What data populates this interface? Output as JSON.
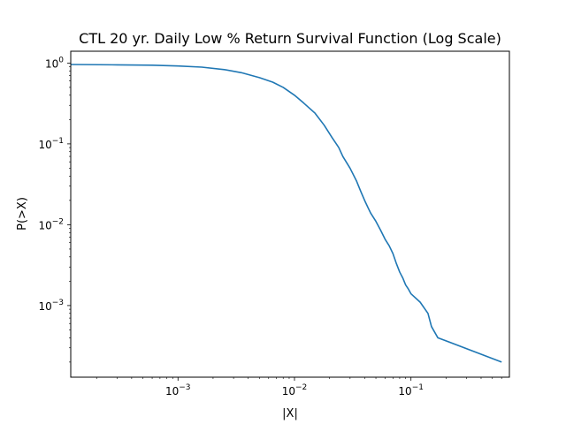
{
  "chart_data": {
    "type": "line",
    "title": "CTL 20 yr. Daily Low % Return Survival Function (Log Scale)",
    "xlabel": "|X|",
    "ylabel": "P(>X)",
    "xscale": "log",
    "yscale": "log",
    "xlim": [
      0.00012,
      0.7
    ],
    "ylim": [
      0.00013,
      1.4
    ],
    "grid": false,
    "legend": "none",
    "x_ticks": [
      {
        "base": "10",
        "exp": "−3",
        "value": 0.001
      },
      {
        "base": "10",
        "exp": "−2",
        "value": 0.01
      },
      {
        "base": "10",
        "exp": "−1",
        "value": 0.1
      }
    ],
    "y_ticks": [
      {
        "base": "10",
        "exp": "0",
        "value": 1
      },
      {
        "base": "10",
        "exp": "−1",
        "value": 0.1
      },
      {
        "base": "10",
        "exp": "−2",
        "value": 0.01
      },
      {
        "base": "10",
        "exp": "−3",
        "value": 0.001
      }
    ],
    "series": [
      {
        "color": "#1f77b4",
        "x": [
          0.00012,
          0.0003,
          0.0006,
          0.001,
          0.0016,
          0.0025,
          0.0035,
          0.005,
          0.0065,
          0.008,
          0.01,
          0.012,
          0.015,
          0.018,
          0.021,
          0.024,
          0.026,
          0.03,
          0.034,
          0.037,
          0.04,
          0.043,
          0.045,
          0.05,
          0.055,
          0.06,
          0.065,
          0.07,
          0.075,
          0.08,
          0.085,
          0.09,
          0.095,
          0.1,
          0.12,
          0.14,
          0.15,
          0.17,
          0.6
        ],
        "y": [
          0.96,
          0.95,
          0.94,
          0.92,
          0.89,
          0.83,
          0.76,
          0.66,
          0.58,
          0.5,
          0.4,
          0.32,
          0.24,
          0.17,
          0.12,
          0.09,
          0.07,
          0.05,
          0.035,
          0.026,
          0.02,
          0.016,
          0.014,
          0.011,
          0.0085,
          0.0066,
          0.0055,
          0.0044,
          0.0033,
          0.0026,
          0.0022,
          0.0018,
          0.0016,
          0.0014,
          0.0011,
          0.0008,
          0.00055,
          0.0004,
          0.0002
        ]
      }
    ]
  }
}
